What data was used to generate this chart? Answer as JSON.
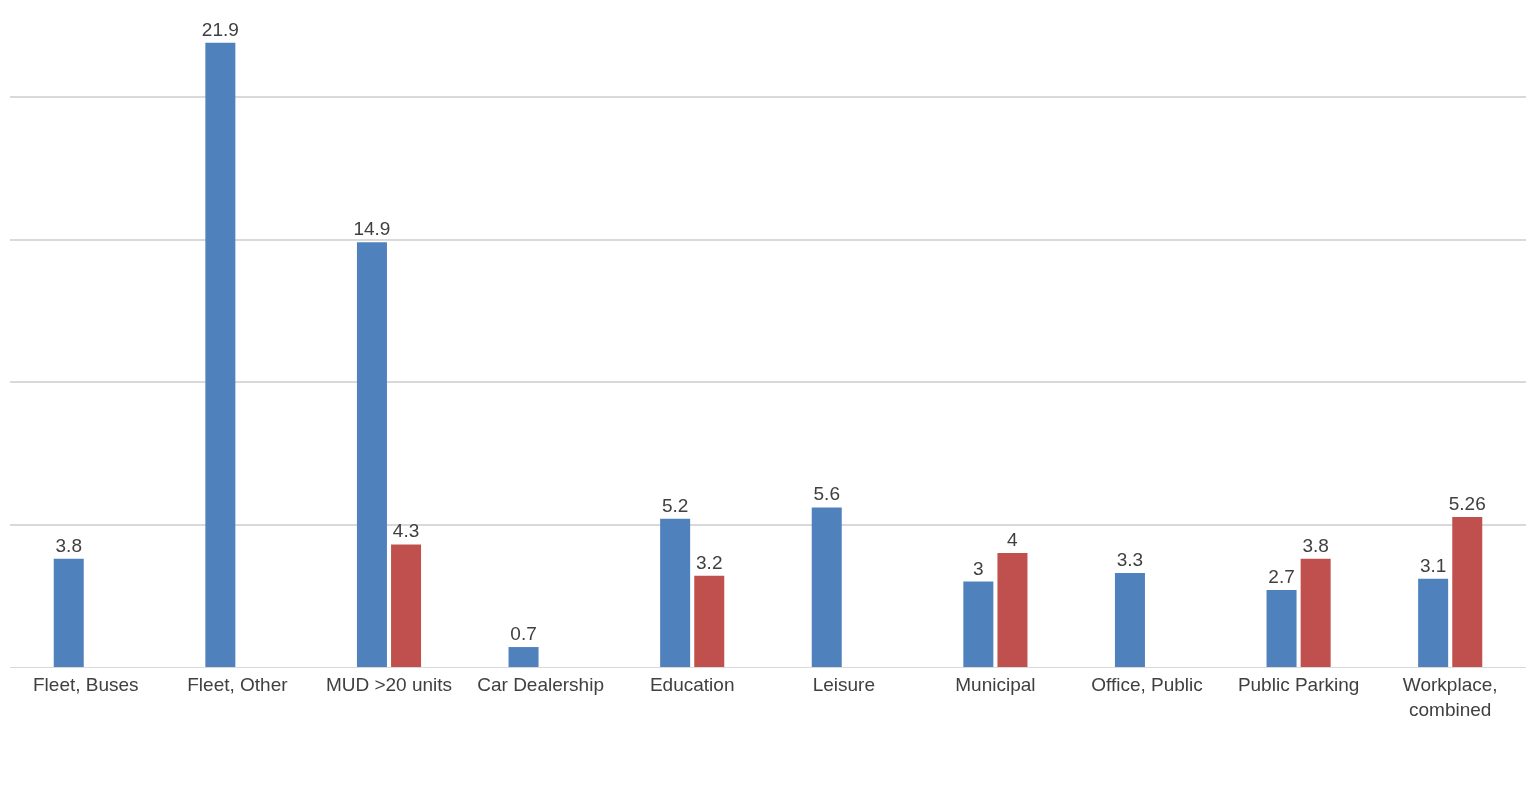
{
  "chart_data": {
    "type": "bar",
    "categories": [
      "Fleet, Buses",
      "Fleet, Other",
      "MUD >20 units",
      "Car Dealership",
      "Education",
      "Leisure",
      "Municipal",
      "Office, Public",
      "Public Parking",
      "Workplace, combined"
    ],
    "series": [
      {
        "color": "#4f81bd",
        "values": [
          3.8,
          21.9,
          14.9,
          0.7,
          5.2,
          5.6,
          3,
          3.3,
          2.7,
          3.1
        ]
      },
      {
        "color": "#c0504d",
        "values": [
          null,
          null,
          4.3,
          null,
          3.2,
          null,
          4,
          null,
          3.8,
          5.26
        ]
      }
    ],
    "tick_labels": "x",
    "grid": "y",
    "data_labels": true
  }
}
